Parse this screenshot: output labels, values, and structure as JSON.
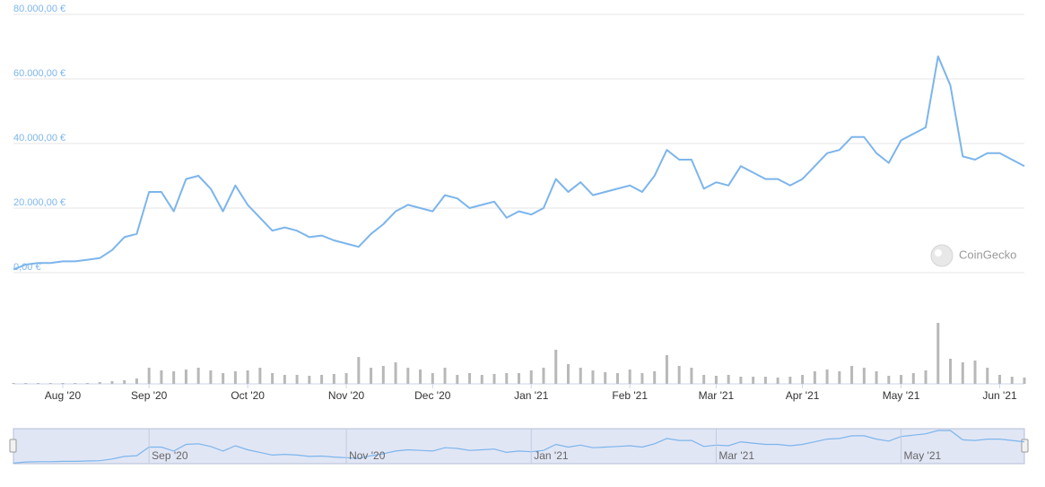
{
  "chart_data": {
    "type": "line",
    "color": "#7cb5ec",
    "volume_color": "#b8b8b8",
    "grid": true,
    "ylim": [
      0,
      80000
    ],
    "yticks": [
      {
        "value": 0,
        "label": "0,00 €"
      },
      {
        "value": 20000,
        "label": "20.000,00 €"
      },
      {
        "value": 40000,
        "label": "40.000,00 €"
      },
      {
        "value": 60000,
        "label": "60.000,00 €"
      },
      {
        "value": 80000,
        "label": "80.000,00 €"
      }
    ],
    "categories": [
      null,
      null,
      null,
      null,
      "Aug '20",
      null,
      null,
      null,
      null,
      null,
      null,
      "Sep '20",
      null,
      null,
      null,
      null,
      null,
      null,
      null,
      "Oct '20",
      null,
      null,
      null,
      null,
      null,
      null,
      null,
      "Nov '20",
      null,
      null,
      null,
      null,
      null,
      null,
      "Dec '20",
      null,
      null,
      null,
      null,
      null,
      null,
      null,
      "Jan '21",
      null,
      null,
      null,
      null,
      null,
      null,
      null,
      "Feb '21",
      null,
      null,
      null,
      null,
      null,
      null,
      "Mar '21",
      null,
      null,
      null,
      null,
      null,
      null,
      "Apr '21",
      null,
      null,
      null,
      null,
      null,
      null,
      null,
      "May '21",
      null,
      null,
      null,
      null,
      null,
      null,
      null,
      "Jun '21",
      null,
      null
    ],
    "values": [
      1000,
      2500,
      3000,
      3000,
      3500,
      3500,
      4000,
      4500,
      7000,
      11000,
      12000,
      25000,
      25000,
      19000,
      29000,
      30000,
      26000,
      19000,
      27000,
      21000,
      17000,
      13000,
      14000,
      13000,
      11000,
      11500,
      10000,
      9000,
      8000,
      12000,
      15000,
      19000,
      21000,
      20000,
      19000,
      24000,
      23000,
      20000,
      21000,
      22000,
      17000,
      19000,
      18000,
      20000,
      29000,
      25000,
      28000,
      24000,
      25000,
      26000,
      27000,
      25000,
      30000,
      38000,
      35000,
      35000,
      26000,
      28000,
      27000,
      33000,
      31000,
      29000,
      29000,
      27000,
      29000,
      33000,
      37000,
      38000,
      42000,
      42000,
      37000,
      34000,
      41000,
      43000,
      45000,
      67000,
      58000,
      36000,
      35000,
      37000,
      37000,
      35000,
      33000
    ],
    "volume": [
      1,
      1,
      1,
      1,
      1,
      1,
      1,
      2,
      3,
      4,
      6,
      18,
      15,
      14,
      16,
      18,
      15,
      12,
      14,
      15,
      18,
      12,
      10,
      10,
      9,
      10,
      11,
      12,
      30,
      18,
      20,
      24,
      18,
      16,
      12,
      18,
      10,
      12,
      10,
      11,
      12,
      12,
      15,
      18,
      38,
      22,
      18,
      15,
      13,
      12,
      16,
      12,
      14,
      32,
      20,
      18,
      10,
      9,
      10,
      8,
      8,
      8,
      7,
      8,
      10,
      14,
      16,
      14,
      20,
      18,
      14,
      9,
      10,
      12,
      15,
      68,
      28,
      24,
      26,
      18,
      10,
      8,
      7
    ],
    "navigator_labels": [
      "Sep '20",
      "Nov '20",
      "Jan '21",
      "Mar '21",
      "May '21"
    ],
    "watermark": "CoinGecko"
  }
}
